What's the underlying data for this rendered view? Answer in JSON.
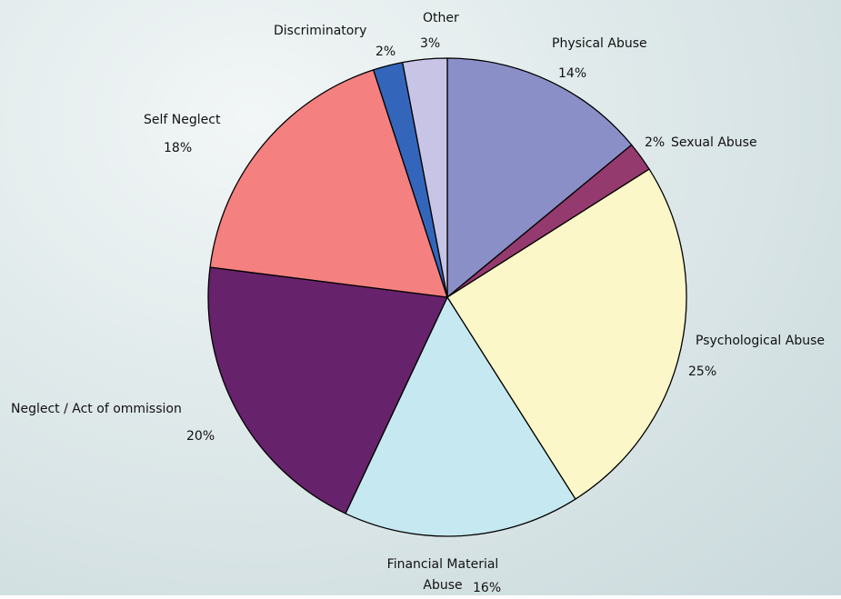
{
  "chart_data": {
    "type": "pie",
    "categories": [
      "Physical Abuse",
      "Sexual Abuse",
      "Psychological Abuse",
      "Financial Material Abuse",
      "Neglect / Act of ommission",
      "Self Neglect",
      "Discriminatory",
      "Other"
    ],
    "values": [
      14,
      2,
      25,
      16,
      20,
      18,
      2,
      3
    ],
    "value_labels": [
      "14%",
      "2%",
      "25%",
      "16%",
      "20%",
      "18%",
      "2%",
      "3%"
    ],
    "colors": [
      "#8b8fc8",
      "#943a6e",
      "#fbf7c8",
      "#c6e8f0",
      "#66226a",
      "#f48080",
      "#3366bb",
      "#c8c4e6"
    ]
  }
}
